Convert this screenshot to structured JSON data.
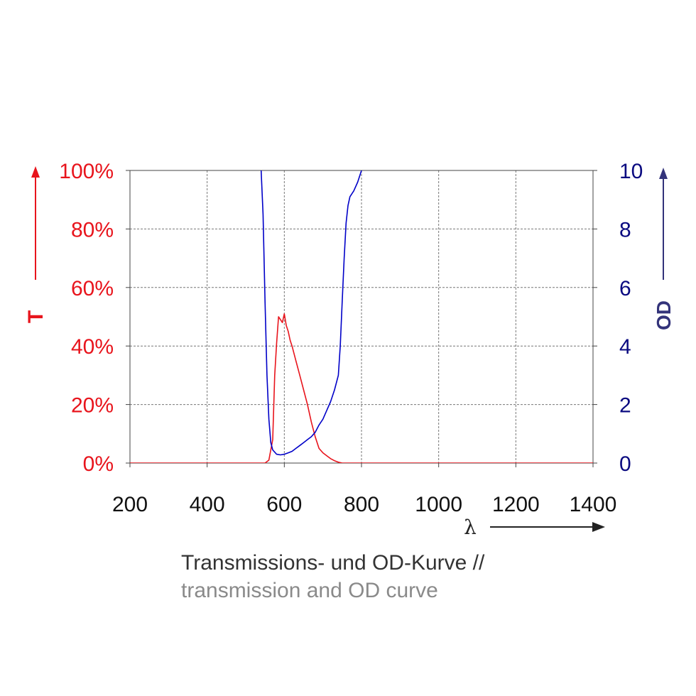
{
  "chart_data": {
    "type": "line",
    "title": "",
    "xlabel": "λ",
    "ylabel_left": "T",
    "ylabel_right": "OD",
    "xlim": [
      200,
      1400
    ],
    "ylim_left": [
      0,
      100
    ],
    "ylim_right": [
      0,
      10
    ],
    "grid": true,
    "x_ticks": [
      "200",
      "400",
      "600",
      "800",
      "1000",
      "1200",
      "1400"
    ],
    "y_left_ticks": [
      "0%",
      "20%",
      "40%",
      "60%",
      "80%",
      "100%"
    ],
    "y_right_ticks": [
      "0",
      "2",
      "4",
      "6",
      "8",
      "10"
    ],
    "colors": {
      "transmission": "#e8141c",
      "od": "#0000c8",
      "right_axis_arrow": "#33337a",
      "axis_arrow": "#222222"
    },
    "series": [
      {
        "axis": "left",
        "unit": "%",
        "x": [
          200,
          550,
          560,
          570,
          575,
          580,
          585,
          590,
          595,
          600,
          605,
          610,
          615,
          620,
          630,
          640,
          650,
          660,
          670,
          680,
          690,
          700,
          710,
          720,
          730,
          740,
          750,
          1400
        ],
        "y": [
          0,
          0,
          1,
          8,
          30,
          41,
          50,
          49,
          48,
          51,
          47,
          45,
          42,
          40,
          35,
          30,
          25,
          20,
          14,
          9,
          5,
          3.5,
          2.5,
          1.5,
          0.8,
          0.3,
          0,
          0
        ]
      },
      {
        "axis": "right",
        "unit": "",
        "x": [
          540,
          545,
          550,
          555,
          560,
          565,
          570,
          580,
          590,
          600,
          610,
          620,
          630,
          640,
          650,
          660,
          670,
          680,
          690,
          700,
          710,
          720,
          730,
          740,
          745,
          750,
          755,
          760,
          765,
          770,
          780,
          790,
          800
        ],
        "y": [
          10,
          8.5,
          5.5,
          3,
          1.5,
          0.7,
          0.45,
          0.3,
          0.28,
          0.3,
          0.35,
          0.4,
          0.5,
          0.6,
          0.7,
          0.8,
          0.9,
          1.05,
          1.3,
          1.5,
          1.8,
          2.1,
          2.5,
          3.0,
          4.0,
          5.5,
          7.0,
          8.2,
          8.8,
          9.1,
          9.3,
          9.6,
          10
        ]
      }
    ]
  },
  "caption": {
    "line1": "Transmissions- und OD-Kurve //",
    "line2": "transmission and OD curve"
  }
}
